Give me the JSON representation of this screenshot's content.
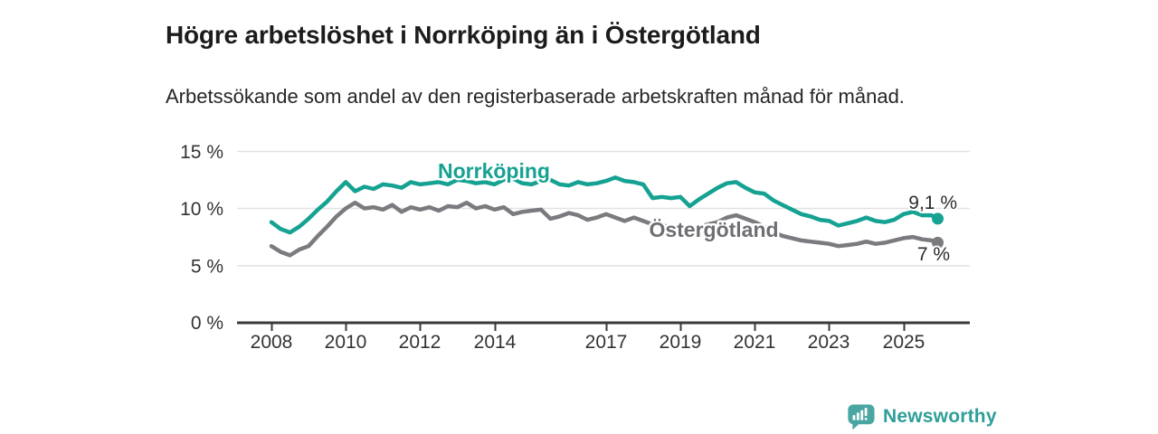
{
  "header": {
    "title": "Högre arbetslöshet i Norrköping än i Östergötland",
    "subtitle": "Arbetssökande som andel av den registerbaserade arbetskraften månad för månad."
  },
  "chart_data": {
    "type": "line",
    "title": "Högre arbetslöshet i Norrköping än i Östergötland",
    "subtitle": "Arbetssökande som andel av den registerbaserade arbetskraften månad för månad.",
    "grid": "horizontal",
    "legend_position": "inline-labels",
    "x_axis": {
      "ticks": [
        "2008",
        "2010",
        "2012",
        "2014",
        "2017",
        "2019",
        "2021",
        "2023",
        "2025"
      ],
      "range": [
        2007.6,
        2026.2
      ]
    },
    "y_axis": {
      "ticks": [
        "0 %",
        "5 %",
        "10 %",
        "15 %"
      ],
      "tick_values": [
        0,
        5,
        10,
        15
      ],
      "range": [
        0,
        15
      ],
      "unit": "%"
    },
    "series": [
      {
        "name": "Norrköping",
        "color": "#15a292",
        "label_color": "#15a292",
        "end_label": "9,1 %",
        "end_value": 9.1,
        "points": [
          [
            2008.0,
            8.8
          ],
          [
            2008.25,
            8.2
          ],
          [
            2008.5,
            7.9
          ],
          [
            2008.75,
            8.4
          ],
          [
            2009.0,
            9.1
          ],
          [
            2009.25,
            9.9
          ],
          [
            2009.5,
            10.6
          ],
          [
            2009.75,
            11.5
          ],
          [
            2010.0,
            12.3
          ],
          [
            2010.25,
            11.5
          ],
          [
            2010.5,
            11.9
          ],
          [
            2010.75,
            11.7
          ],
          [
            2011.0,
            12.1
          ],
          [
            2011.25,
            12.0
          ],
          [
            2011.5,
            11.8
          ],
          [
            2011.75,
            12.3
          ],
          [
            2012.0,
            12.1
          ],
          [
            2012.25,
            12.2
          ],
          [
            2012.5,
            12.3
          ],
          [
            2012.75,
            12.1
          ],
          [
            2013.0,
            12.5
          ],
          [
            2013.25,
            12.4
          ],
          [
            2013.5,
            12.2
          ],
          [
            2013.75,
            12.3
          ],
          [
            2014.0,
            12.1
          ],
          [
            2014.25,
            12.5
          ],
          [
            2014.5,
            12.6
          ],
          [
            2014.75,
            12.2
          ],
          [
            2015.0,
            12.1
          ],
          [
            2015.25,
            12.4
          ],
          [
            2015.5,
            12.5
          ],
          [
            2015.75,
            12.1
          ],
          [
            2016.0,
            12.0
          ],
          [
            2016.25,
            12.3
          ],
          [
            2016.5,
            12.1
          ],
          [
            2016.75,
            12.2
          ],
          [
            2017.0,
            12.4
          ],
          [
            2017.25,
            12.7
          ],
          [
            2017.5,
            12.4
          ],
          [
            2017.75,
            12.3
          ],
          [
            2018.0,
            12.1
          ],
          [
            2018.25,
            10.9
          ],
          [
            2018.5,
            11.0
          ],
          [
            2018.75,
            10.9
          ],
          [
            2019.0,
            11.0
          ],
          [
            2019.25,
            10.2
          ],
          [
            2019.5,
            10.8
          ],
          [
            2019.75,
            11.3
          ],
          [
            2020.0,
            11.8
          ],
          [
            2020.25,
            12.2
          ],
          [
            2020.5,
            12.3
          ],
          [
            2020.75,
            11.8
          ],
          [
            2021.0,
            11.4
          ],
          [
            2021.25,
            11.3
          ],
          [
            2021.5,
            10.7
          ],
          [
            2021.75,
            10.3
          ],
          [
            2022.0,
            9.9
          ],
          [
            2022.25,
            9.5
          ],
          [
            2022.5,
            9.3
          ],
          [
            2022.75,
            9.0
          ],
          [
            2023.0,
            8.9
          ],
          [
            2023.25,
            8.5
          ],
          [
            2023.5,
            8.7
          ],
          [
            2023.75,
            8.9
          ],
          [
            2024.0,
            9.2
          ],
          [
            2024.25,
            8.9
          ],
          [
            2024.5,
            8.8
          ],
          [
            2024.75,
            9.0
          ],
          [
            2025.0,
            9.5
          ],
          [
            2025.25,
            9.7
          ],
          [
            2025.5,
            9.4
          ],
          [
            2025.75,
            9.4
          ],
          [
            2025.92,
            9.1
          ]
        ]
      },
      {
        "name": "Östergötland",
        "color": "#7b7b7f",
        "label_color": "#6e6e73",
        "end_label": "7 %",
        "end_value": 7.0,
        "points": [
          [
            2008.0,
            6.7
          ],
          [
            2008.25,
            6.2
          ],
          [
            2008.5,
            5.9
          ],
          [
            2008.75,
            6.4
          ],
          [
            2009.0,
            6.7
          ],
          [
            2009.25,
            7.6
          ],
          [
            2009.5,
            8.4
          ],
          [
            2009.75,
            9.3
          ],
          [
            2010.0,
            10.0
          ],
          [
            2010.25,
            10.5
          ],
          [
            2010.5,
            10.0
          ],
          [
            2010.75,
            10.1
          ],
          [
            2011.0,
            9.9
          ],
          [
            2011.25,
            10.3
          ],
          [
            2011.5,
            9.7
          ],
          [
            2011.75,
            10.1
          ],
          [
            2012.0,
            9.9
          ],
          [
            2012.25,
            10.1
          ],
          [
            2012.5,
            9.8
          ],
          [
            2012.75,
            10.2
          ],
          [
            2013.0,
            10.1
          ],
          [
            2013.25,
            10.5
          ],
          [
            2013.5,
            10.0
          ],
          [
            2013.75,
            10.2
          ],
          [
            2014.0,
            9.9
          ],
          [
            2014.25,
            10.1
          ],
          [
            2014.5,
            9.5
          ],
          [
            2014.75,
            9.7
          ],
          [
            2015.0,
            9.8
          ],
          [
            2015.25,
            9.9
          ],
          [
            2015.5,
            9.1
          ],
          [
            2015.75,
            9.3
          ],
          [
            2016.0,
            9.6
          ],
          [
            2016.25,
            9.4
          ],
          [
            2016.5,
            9.0
          ],
          [
            2016.75,
            9.2
          ],
          [
            2017.0,
            9.5
          ],
          [
            2017.25,
            9.2
          ],
          [
            2017.5,
            8.9
          ],
          [
            2017.75,
            9.2
          ],
          [
            2018.0,
            8.9
          ],
          [
            2018.25,
            8.6
          ],
          [
            2018.5,
            8.5
          ],
          [
            2018.75,
            8.4
          ],
          [
            2019.0,
            8.3
          ],
          [
            2019.25,
            8.2
          ],
          [
            2019.5,
            8.4
          ],
          [
            2019.75,
            8.6
          ],
          [
            2020.0,
            8.8
          ],
          [
            2020.25,
            9.2
          ],
          [
            2020.5,
            9.4
          ],
          [
            2020.75,
            9.1
          ],
          [
            2021.0,
            8.8
          ],
          [
            2021.25,
            8.4
          ],
          [
            2021.5,
            7.9
          ],
          [
            2021.75,
            7.6
          ],
          [
            2022.0,
            7.4
          ],
          [
            2022.25,
            7.2
          ],
          [
            2022.5,
            7.1
          ],
          [
            2022.75,
            7.0
          ],
          [
            2023.0,
            6.9
          ],
          [
            2023.25,
            6.7
          ],
          [
            2023.5,
            6.8
          ],
          [
            2023.75,
            6.9
          ],
          [
            2024.0,
            7.1
          ],
          [
            2024.25,
            6.9
          ],
          [
            2024.5,
            7.0
          ],
          [
            2024.75,
            7.2
          ],
          [
            2025.0,
            7.4
          ],
          [
            2025.25,
            7.5
          ],
          [
            2025.5,
            7.3
          ],
          [
            2025.75,
            7.2
          ],
          [
            2025.92,
            7.0
          ]
        ]
      }
    ],
    "colors": {
      "axis_line": "#3a3a3a",
      "gridline": "#e2e2e2",
      "axis_text": "#333333",
      "end_label_text": "#2d2d2d"
    }
  },
  "branding": {
    "logo_text": "Newsworthy",
    "logo_icon": "bar-chart-speech-bubble-icon",
    "text_color": "#2f9e99",
    "icon_color": "#4aa6a3"
  }
}
